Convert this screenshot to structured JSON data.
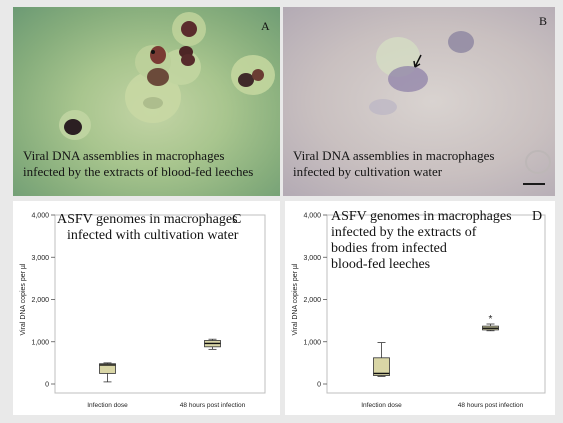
{
  "panels": {
    "a": {
      "label": "A",
      "caption_line1": "Viral DNA assemblies in macrophages",
      "caption_line2": "infected by the extracts of blood-fed leeches"
    },
    "b": {
      "label": "B",
      "caption_line1": "Viral DNA assemblies in macrophages",
      "caption_line2": "infected by cultivation water"
    },
    "c": {
      "label": "C",
      "title_line1": "ASFV genomes in macrophages",
      "title_line2": "infected with cultivation water"
    },
    "d": {
      "label": "D",
      "title_line1": "ASFV genomes in macrophages",
      "title_line2": "infected by the extracts of",
      "title_line3": "bodies from infected",
      "title_line4": "blood-fed leeches"
    }
  },
  "colors": {
    "box_fill": "#d9d6a6",
    "box_stroke": "#333333",
    "panel_a_background": "#a8c58e",
    "panel_b_background": "#c9c0c0"
  },
  "chart_data": [
    {
      "type": "box",
      "panel": "C",
      "ylabel": "Viral DNA copies per µl",
      "ylim": [
        0,
        4000
      ],
      "y_ticks": [
        0,
        1000,
        2000,
        3000,
        4000
      ],
      "y_tick_labels": [
        "0",
        "1,000",
        "2,000",
        "3,000",
        "4,000"
      ],
      "categories": [
        "Infection dose",
        "48 hours post infection"
      ],
      "boxes": [
        {
          "category": "Infection dose",
          "min": 50,
          "q1": 250,
          "median": 450,
          "q3": 480,
          "max": 500
        },
        {
          "category": "48 hours post infection",
          "min": 820,
          "q1": 880,
          "median": 960,
          "q3": 1030,
          "max": 1060
        }
      ],
      "outliers": []
    },
    {
      "type": "box",
      "panel": "D",
      "ylabel": "Viral DNA copies per µl",
      "ylim": [
        0,
        4000
      ],
      "y_ticks": [
        0,
        1000,
        2000,
        3000,
        4000
      ],
      "y_tick_labels": [
        "0",
        "1,000",
        "2,000",
        "3,000",
        "4,000"
      ],
      "categories": [
        "Infection dose",
        "48 hours post infection"
      ],
      "boxes": [
        {
          "category": "Infection dose",
          "min": 180,
          "q1": 200,
          "median": 250,
          "q3": 620,
          "max": 980
        },
        {
          "category": "48 hours post infection",
          "min": 1260,
          "q1": 1280,
          "median": 1320,
          "q3": 1370,
          "max": 1420
        }
      ],
      "outliers": [
        {
          "category": "48 hours post infection",
          "marker": "*",
          "value": 1560
        }
      ]
    }
  ]
}
